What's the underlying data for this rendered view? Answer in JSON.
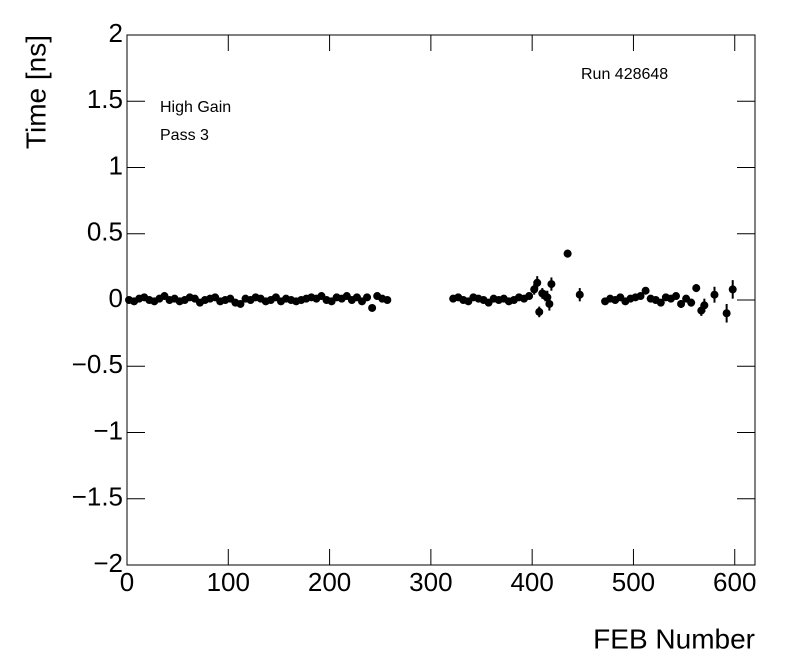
{
  "chart_data": {
    "type": "scatter",
    "x_label": "FEB Number",
    "y_label": "Time [ns]",
    "annotations": [
      "Run 428648",
      "High Gain",
      "Pass 3"
    ],
    "color": "#000000",
    "xlim": [
      0,
      620
    ],
    "ylim": [
      -2,
      2
    ],
    "xticks": [
      0,
      100,
      200,
      300,
      400,
      500,
      600
    ],
    "yticks": [
      {
        "value": -2,
        "label": "−2"
      },
      {
        "value": -1.5,
        "label": "−1.5"
      },
      {
        "value": -1,
        "label": "−1"
      },
      {
        "value": -0.5,
        "label": "−0.5"
      },
      0,
      0.5,
      1,
      1.5,
      2
    ],
    "x": [
      2,
      7,
      12,
      17,
      22,
      27,
      32,
      37,
      42,
      47,
      52,
      57,
      62,
      67,
      72,
      77,
      82,
      87,
      92,
      97,
      102,
      107,
      112,
      117,
      122,
      127,
      132,
      137,
      142,
      147,
      152,
      157,
      162,
      167,
      172,
      177,
      182,
      187,
      192,
      197,
      202,
      207,
      212,
      217,
      222,
      227,
      232,
      237,
      242,
      247,
      252,
      257,
      322,
      327,
      332,
      337,
      342,
      347,
      352,
      357,
      362,
      367,
      372,
      377,
      382,
      387,
      392,
      397,
      402,
      405,
      407,
      410,
      413,
      415,
      417,
      419,
      435,
      447,
      472,
      477,
      482,
      487,
      492,
      497,
      502,
      507,
      512,
      517,
      522,
      527,
      532,
      537,
      542,
      547,
      552,
      557,
      562,
      567,
      570,
      580,
      592,
      598
    ],
    "values": [
      0,
      -0.01,
      0.01,
      0.02,
      0,
      -0.01,
      0.01,
      0.03,
      0,
      0.01,
      -0.01,
      0,
      0.02,
      0.01,
      -0.02,
      0,
      0.01,
      0.02,
      -0.01,
      0,
      0.01,
      -0.02,
      -0.03,
      0.01,
      0,
      0.02,
      0.01,
      -0.01,
      0,
      0.02,
      -0.01,
      0.01,
      0,
      -0.01,
      0,
      0.01,
      0.02,
      0.01,
      0.03,
      0,
      -0.01,
      0.02,
      0.01,
      0.03,
      0,
      0.02,
      -0.01,
      0.02,
      -0.06,
      0.03,
      0.01,
      0,
      0.01,
      0.02,
      0,
      -0.01,
      0.02,
      0.01,
      0,
      -0.02,
      0.01,
      0,
      0.01,
      -0.01,
      0,
      0.02,
      0.01,
      0.03,
      0.08,
      0.13,
      -0.09,
      0.05,
      0.03,
      0.02,
      -0.03,
      0.12,
      0.35,
      0.04,
      -0.01,
      0.01,
      0,
      0.02,
      -0.01,
      0.01,
      0.02,
      0.03,
      0.07,
      0.01,
      0,
      -0.02,
      0.02,
      0.01,
      0.03,
      -0.03,
      0.01,
      -0.02,
      0.09,
      -0.08,
      -0.04,
      0.04,
      -0.1,
      0.08
    ],
    "errors": [
      0.015,
      0.015,
      0.015,
      0.015,
      0.015,
      0.015,
      0.015,
      0.015,
      0.015,
      0.015,
      0.015,
      0.015,
      0.015,
      0.015,
      0.015,
      0.015,
      0.015,
      0.015,
      0.015,
      0.015,
      0.015,
      0.015,
      0.015,
      0.015,
      0.015,
      0.015,
      0.015,
      0.015,
      0.015,
      0.015,
      0.015,
      0.015,
      0.015,
      0.015,
      0.015,
      0.015,
      0.015,
      0.015,
      0.015,
      0.015,
      0.015,
      0.015,
      0.015,
      0.015,
      0.015,
      0.015,
      0.015,
      0.015,
      0.02,
      0.015,
      0.015,
      0.015,
      0.015,
      0.015,
      0.015,
      0.015,
      0.015,
      0.015,
      0.015,
      0.015,
      0.015,
      0.015,
      0.015,
      0.015,
      0.015,
      0.015,
      0.015,
      0.015,
      0.04,
      0.05,
      0.04,
      0.04,
      0.04,
      0.05,
      0.05,
      0.05,
      0.03,
      0.05,
      0.015,
      0.015,
      0.015,
      0.015,
      0.015,
      0.015,
      0.015,
      0.015,
      0.015,
      0.015,
      0.015,
      0.015,
      0.015,
      0.015,
      0.02,
      0.03,
      0.02,
      0.03,
      0.03,
      0.04,
      0.05,
      0.06,
      0.07,
      0.07
    ]
  }
}
